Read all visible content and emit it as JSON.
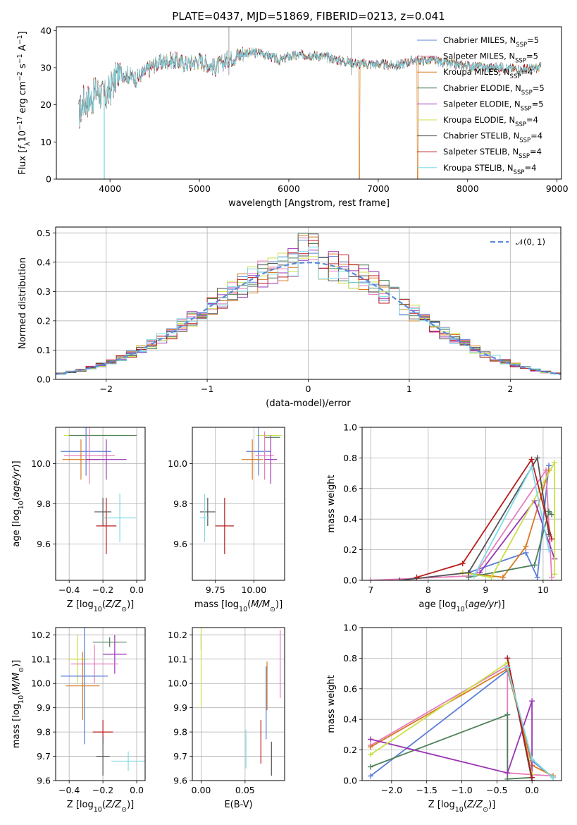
{
  "colors": {
    "Chabrier MILES": "#5b7fd6",
    "Salpeter MILES": "#e87cbd",
    "Kroupa MILES": "#d97b22",
    "Chabrier ELODIE": "#4f8059",
    "Salpeter ELODIE": "#9a34b5",
    "Kroupa ELODIE": "#c9e048",
    "Chabrier STELIB": "#545454",
    "Salpeter STELIB": "#b81d1d",
    "Kroupa STELIB": "#7fdbe6"
  },
  "chart_data": [
    {
      "id": "spectrum",
      "type": "line",
      "title": "PLATE=0437, MJD=51869, FIBERID=0213, z=0.041",
      "xlabel": "wavelength [Angstrom, rest frame]",
      "ylabel": "Flux [f_λ10^{-17} erg cm^{-2} s^{-1} A^{-1}]",
      "xlim": [
        3400,
        9050
      ],
      "ylim": [
        0,
        41
      ],
      "xticks": [
        4000,
        5000,
        6000,
        7000,
        8000,
        9000
      ],
      "yticks": [
        0,
        10,
        20,
        30,
        40
      ],
      "grid": false,
      "legend_position": "top-right",
      "legend": [
        {
          "model": "Chabrier MILES",
          "nssp": "5"
        },
        {
          "model": "Salpeter MILES",
          "nssp": "5"
        },
        {
          "model": "Kroupa MILES",
          "nssp": "4"
        },
        {
          "model": "Chabrier ELODIE",
          "nssp": "5"
        },
        {
          "model": "Salpeter ELODIE",
          "nssp": "5"
        },
        {
          "model": "Kroupa ELODIE",
          "nssp": "4"
        },
        {
          "model": "Chabrier STELIB",
          "nssp": "4"
        },
        {
          "model": "Salpeter STELIB",
          "nssp": "4"
        },
        {
          "model": "Kroupa STELIB",
          "nssp": "4"
        }
      ],
      "continuum": [
        [
          3650,
          17
        ],
        [
          3700,
          21
        ],
        [
          3800,
          21.5
        ],
        [
          3850,
          24
        ],
        [
          3950,
          22
        ],
        [
          4000,
          24
        ],
        [
          4100,
          29
        ],
        [
          4200,
          28
        ],
        [
          4300,
          27
        ],
        [
          4400,
          29
        ],
        [
          4500,
          31
        ],
        [
          4700,
          32
        ],
        [
          4860,
          31
        ],
        [
          5000,
          32
        ],
        [
          5175,
          30
        ],
        [
          5300,
          32
        ],
        [
          5500,
          34
        ],
        [
          5700,
          34
        ],
        [
          5890,
          32
        ],
        [
          6000,
          33
        ],
        [
          6200,
          33.5
        ],
        [
          6400,
          33
        ],
        [
          6563,
          32
        ],
        [
          6800,
          31
        ],
        [
          7000,
          31
        ],
        [
          7200,
          30.5
        ],
        [
          7400,
          32
        ],
        [
          7600,
          32
        ],
        [
          7800,
          31
        ],
        [
          8000,
          30.5
        ],
        [
          8200,
          30
        ],
        [
          8400,
          30
        ],
        [
          8600,
          29.5
        ],
        [
          8800,
          30
        ]
      ],
      "drops": [
        {
          "model": "Kroupa STELIB",
          "wavelength": 3935,
          "flux": 0
        },
        {
          "model": "Kroupa MILES",
          "wavelength": 6790,
          "flux": 0
        },
        {
          "model": "Kroupa MILES",
          "wavelength": 7440,
          "flux": 0
        }
      ]
    },
    {
      "id": "residuals",
      "type": "histogram",
      "xlabel": "(data-model)/error",
      "ylabel": "Normed distribution",
      "xlim": [
        -2.5,
        2.5
      ],
      "ylim": [
        0,
        0.52
      ],
      "xticks": [
        -2,
        -1,
        0,
        1,
        2
      ],
      "yticks": [
        0.0,
        0.1,
        0.2,
        0.3,
        0.4,
        0.5
      ],
      "grid": true,
      "legend_position": "top-right",
      "reference_curve": {
        "label": "𝒩(0, 1)",
        "mean": 0,
        "sigma": 1
      },
      "bin_width": 0.1
    },
    {
      "id": "age-vs-Z",
      "type": "errorbar",
      "xlabel": "Z [log10(Z/Z⊙)]",
      "ylabel": "age [log10(age/yr)]",
      "xlim": [
        -0.48,
        0.05
      ],
      "ylim": [
        9.42,
        10.18
      ],
      "xticks": [
        -0.4,
        -0.2,
        0.0
      ],
      "yticks": [
        9.6,
        9.8,
        10.0
      ],
      "grid": true,
      "points": [
        {
          "model": "Kroupa ELODIE",
          "x": -0.25,
          "xerr": 0.18,
          "y": 10.14,
          "yerr": 0.0
        },
        {
          "model": "Chabrier ELODIE",
          "x": -0.2,
          "xerr": 0.2,
          "y": 10.14,
          "yerr": 0.0
        },
        {
          "model": "Chabrier MILES",
          "x": -0.3,
          "xerr": 0.15,
          "y": 10.06,
          "yerr": 0.12
        },
        {
          "model": "Salpeter MILES",
          "x": -0.28,
          "xerr": 0.15,
          "y": 10.04,
          "yerr": 0.14
        },
        {
          "model": "Kroupa MILES",
          "x": -0.33,
          "xerr": 0.11,
          "y": 10.02,
          "yerr": 0.1
        },
        {
          "model": "Salpeter ELODIE",
          "x": -0.18,
          "xerr": 0.12,
          "y": 10.02,
          "yerr": 0.1
        },
        {
          "model": "Chabrier STELIB",
          "x": -0.2,
          "xerr": 0.05,
          "y": 9.76,
          "yerr": 0.07
        },
        {
          "model": "Kroupa STELIB",
          "x": -0.1,
          "xerr": 0.1,
          "y": 9.73,
          "yerr": 0.12
        },
        {
          "model": "Salpeter STELIB",
          "x": -0.18,
          "xerr": 0.06,
          "y": 9.69,
          "yerr": 0.14
        }
      ]
    },
    {
      "id": "age-vs-mass",
      "type": "errorbar",
      "xlabel": "mass [log10(M/M⊙)]",
      "ylabel": "",
      "xlim": [
        9.6,
        10.2
      ],
      "ylim": [
        9.42,
        10.18
      ],
      "xticks": [
        9.75,
        10.0
      ],
      "yticks": [
        9.6,
        9.8,
        10.0
      ],
      "grid": true,
      "points": [
        {
          "model": "Kroupa ELODIE",
          "x": 10.1,
          "xerr": 0.08,
          "y": 10.14,
          "yerr": 0.0
        },
        {
          "model": "Chabrier ELODIE",
          "x": 10.12,
          "xerr": 0.05,
          "y": 10.13,
          "yerr": 0.0
        },
        {
          "model": "Chabrier MILES",
          "x": 10.03,
          "xerr": 0.08,
          "y": 10.06,
          "yerr": 0.12
        },
        {
          "model": "Salpeter MILES",
          "x": 10.07,
          "xerr": 0.06,
          "y": 10.04,
          "yerr": 0.12
        },
        {
          "model": "Kroupa MILES",
          "x": 9.99,
          "xerr": 0.07,
          "y": 10.02,
          "yerr": 0.1
        },
        {
          "model": "Salpeter ELODIE",
          "x": 10.11,
          "xerr": 0.04,
          "y": 10.02,
          "yerr": 0.12
        },
        {
          "model": "Chabrier STELIB",
          "x": 9.7,
          "xerr": 0.05,
          "y": 9.76,
          "yerr": 0.07
        },
        {
          "model": "Kroupa STELIB",
          "x": 9.68,
          "xerr": 0.03,
          "y": 9.73,
          "yerr": 0.12
        },
        {
          "model": "Salpeter STELIB",
          "x": 9.81,
          "xerr": 0.06,
          "y": 9.69,
          "yerr": 0.14
        }
      ]
    },
    {
      "id": "massweight-vs-age",
      "type": "line",
      "xlabel": "age [log10(age/yr)]",
      "ylabel": "mass weight",
      "xlim": [
        6.85,
        10.32
      ],
      "ylim": [
        0,
        1.0
      ],
      "xticks": [
        7,
        8,
        9,
        10
      ],
      "yticks": [
        0.0,
        0.2,
        0.4,
        0.6,
        0.8,
        1.0
      ],
      "grid": true,
      "series": [
        {
          "model": "Chabrier MILES",
          "points": [
            [
              8.7,
              0.05
            ],
            [
              9.7,
              0.18
            ],
            [
              9.9,
              0.02
            ],
            [
              10.1,
              0.75
            ]
          ]
        },
        {
          "model": "Salpeter MILES",
          "points": [
            [
              7.0,
              0.0
            ],
            [
              8.8,
              0.03
            ],
            [
              10.05,
              0.72
            ],
            [
              10.15,
              0.02
            ]
          ]
        },
        {
          "model": "Kroupa MILES",
          "points": [
            [
              8.6,
              0.05
            ],
            [
              9.3,
              0.02
            ],
            [
              9.7,
              0.22
            ],
            [
              10.1,
              0.72
            ]
          ]
        },
        {
          "model": "Chabrier ELODIE",
          "points": [
            [
              8.7,
              0.02
            ],
            [
              9.85,
              0.1
            ],
            [
              10.1,
              0.45
            ],
            [
              10.15,
              0.43
            ]
          ]
        },
        {
          "model": "Salpeter ELODIE",
          "points": [
            [
              8.9,
              0.05
            ],
            [
              9.85,
              0.52
            ],
            [
              10.2,
              0.14
            ]
          ]
        },
        {
          "model": "Kroupa ELODIE",
          "points": [
            [
              8.6,
              0.05
            ],
            [
              9.1,
              0.02
            ],
            [
              10.2,
              0.77
            ],
            [
              10.2,
              0.04
            ]
          ]
        },
        {
          "model": "Chabrier STELIB",
          "points": [
            [
              7.5,
              0.0
            ],
            [
              8.7,
              0.05
            ],
            [
              9.9,
              0.8
            ],
            [
              10.1,
              0.3
            ]
          ]
        },
        {
          "model": "Salpeter STELIB",
          "points": [
            [
              7.8,
              0.02
            ],
            [
              8.6,
              0.11
            ],
            [
              9.8,
              0.79
            ],
            [
              10.15,
              0.27
            ]
          ]
        },
        {
          "model": "Kroupa STELIB",
          "points": [
            [
              8.8,
              0.03
            ],
            [
              9.8,
              0.74
            ],
            [
              10.1,
              0.2
            ]
          ]
        }
      ]
    },
    {
      "id": "mass-vs-Z",
      "type": "errorbar",
      "xlabel": "Z [log10(Z/Z⊙)]",
      "ylabel": "mass [log10(M/M⊙)]",
      "xlim": [
        -0.48,
        0.05
      ],
      "ylim": [
        9.6,
        10.23
      ],
      "xticks": [
        -0.4,
        -0.2,
        0.0
      ],
      "yticks": [
        9.6,
        9.7,
        9.8,
        9.9,
        10.0,
        10.1,
        10.2
      ],
      "grid": true,
      "points": [
        {
          "model": "Chabrier ELODIE",
          "x": -0.16,
          "xerr": 0.1,
          "y": 10.17,
          "yerr": 0.02
        },
        {
          "model": "Salpeter ELODIE",
          "x": -0.13,
          "xerr": 0.07,
          "y": 10.12,
          "yerr": 0.08
        },
        {
          "model": "Kroupa ELODIE",
          "x": -0.35,
          "xerr": 0.06,
          "y": 10.1,
          "yerr": 0.1
        },
        {
          "model": "Salpeter MILES",
          "x": -0.25,
          "xerr": 0.14,
          "y": 10.08,
          "yerr": 0.08
        },
        {
          "model": "Chabrier MILES",
          "x": -0.31,
          "xerr": 0.14,
          "y": 10.03,
          "yerr": 0.28
        },
        {
          "model": "Kroupa MILES",
          "x": -0.32,
          "xerr": 0.1,
          "y": 9.99,
          "yerr": 0.14
        },
        {
          "model": "Salpeter STELIB",
          "x": -0.2,
          "xerr": 0.06,
          "y": 9.8,
          "yerr": 0.05
        },
        {
          "model": "Chabrier STELIB",
          "x": -0.2,
          "xerr": 0.04,
          "y": 9.7,
          "yerr": 0.08
        },
        {
          "model": "Kroupa STELIB",
          "x": -0.05,
          "xerr": 0.1,
          "y": 9.68,
          "yerr": 0.04
        }
      ]
    },
    {
      "id": "mass-vs-ebv",
      "type": "errorbar",
      "xlabel": "E(B-V)",
      "ylabel": "",
      "xlim": [
        -0.01,
        0.095
      ],
      "ylim": [
        9.6,
        10.23
      ],
      "xticks": [
        0.0,
        0.05
      ],
      "yticks": [
        9.6,
        9.7,
        9.8,
        9.9,
        10.0,
        10.1,
        10.2
      ],
      "grid": true,
      "points": [
        {
          "model": "Chabrier ELODIE",
          "x": 0.0,
          "xerr": 0.0,
          "y": 10.17,
          "yerr": 0.03
        },
        {
          "model": "Kroupa ELODIE",
          "x": 0.0,
          "xerr": 0.0,
          "y": 10.1,
          "yerr": 0.2
        },
        {
          "model": "Salpeter MILES",
          "x": 0.09,
          "xerr": 0.0,
          "y": 10.08,
          "yerr": 0.14
        },
        {
          "model": "Kroupa MILES",
          "x": 0.075,
          "xerr": 0.0,
          "y": 9.99,
          "yerr": 0.1
        },
        {
          "model": "Chabrier MILES",
          "x": 0.074,
          "xerr": 0.0,
          "y": 9.92,
          "yerr": 0.15
        },
        {
          "model": "Salpeter STELIB",
          "x": 0.068,
          "xerr": 0.0,
          "y": 9.76,
          "yerr": 0.09
        },
        {
          "model": "Chabrier STELIB",
          "x": 0.08,
          "xerr": 0.0,
          "y": 9.69,
          "yerr": 0.07
        },
        {
          "model": "Kroupa STELIB",
          "x": 0.051,
          "xerr": 0.0,
          "y": 9.73,
          "yerr": 0.08
        }
      ]
    },
    {
      "id": "massweight-vs-Z",
      "type": "line",
      "xlabel": "Z [log10(Z/Z⊙)]",
      "ylabel": "mass weight",
      "xlim": [
        -2.42,
        0.42
      ],
      "ylim": [
        0,
        1.0
      ],
      "xticks": [
        -2.0,
        -1.5,
        -1.0,
        -0.5,
        0.0
      ],
      "yticks": [
        0.0,
        0.2,
        0.4,
        0.6,
        0.8,
        1.0
      ],
      "grid": true,
      "series": [
        {
          "model": "Chabrier MILES",
          "points": [
            [
              -2.3,
              0.03
            ],
            [
              -0.35,
              0.72
            ],
            [
              0.0,
              0.13
            ],
            [
              0.3,
              0.02
            ]
          ]
        },
        {
          "model": "Salpeter MILES",
          "points": [
            [
              -2.3,
              0.23
            ],
            [
              -0.35,
              0.75
            ],
            [
              -0.35,
              0.05
            ],
            [
              0.3,
              0.03
            ]
          ]
        },
        {
          "model": "Kroupa MILES",
          "points": [
            [
              -2.3,
              0.22
            ],
            [
              -0.35,
              0.73
            ],
            [
              0.0,
              0.1
            ],
            [
              0.3,
              0.03
            ]
          ]
        },
        {
          "model": "Chabrier ELODIE",
          "points": [
            [
              -2.3,
              0.09
            ],
            [
              -0.35,
              0.43
            ],
            [
              -0.35,
              0.01
            ],
            [
              0.0,
              0.02
            ]
          ]
        },
        {
          "model": "Salpeter ELODIE",
          "points": [
            [
              -2.3,
              0.27
            ],
            [
              -0.35,
              0.05
            ],
            [
              0.0,
              0.52
            ],
            [
              0.0,
              0.0
            ]
          ]
        },
        {
          "model": "Kroupa ELODIE",
          "points": [
            [
              -2.3,
              0.17
            ],
            [
              -0.35,
              0.77
            ],
            [
              0.0,
              0.04
            ]
          ]
        },
        {
          "model": "Chabrier STELIB",
          "points": [
            [
              -0.35,
              0.8
            ],
            [
              0.0,
              0.0
            ]
          ]
        },
        {
          "model": "Salpeter STELIB",
          "points": [
            [
              -0.35,
              0.8
            ],
            [
              0.0,
              0.02
            ]
          ]
        },
        {
          "model": "Kroupa STELIB",
          "points": [
            [
              -0.35,
              0.74
            ],
            [
              0.0,
              0.14
            ],
            [
              0.3,
              0.02
            ]
          ]
        }
      ]
    }
  ]
}
